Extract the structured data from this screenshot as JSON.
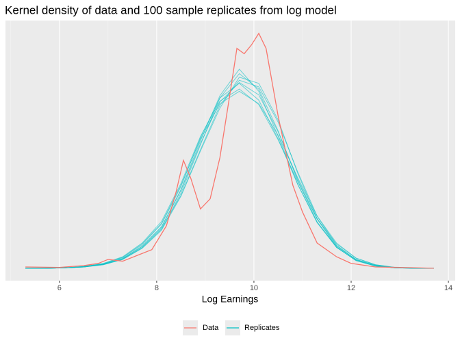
{
  "chart_data": {
    "type": "line",
    "title": "Kernel density of data and 100 sample replicates from log model",
    "x_label": "Log Earnings",
    "xlim": [
      4.89,
      14.14
    ],
    "ylim": [
      -0.028,
      0.56
    ],
    "xticks": [
      6,
      8,
      10,
      12,
      14
    ],
    "xminor_grid": [
      5,
      7,
      9,
      11,
      13
    ],
    "grid": true,
    "legend": "bottom",
    "series": [
      {
        "name": "Data",
        "color": "#F8766D",
        "x": [
          5.3,
          6.0,
          6.5,
          6.8,
          7.0,
          7.3,
          7.6,
          7.9,
          8.2,
          8.4,
          8.55,
          8.7,
          8.9,
          9.1,
          9.3,
          9.5,
          9.65,
          9.8,
          9.95,
          10.1,
          10.25,
          10.5,
          10.8,
          11.0,
          11.3,
          11.7,
          12.0,
          12.5,
          13.0,
          13.7
        ],
        "values": [
          0.003,
          0.002,
          0.006,
          0.011,
          0.02,
          0.016,
          0.029,
          0.042,
          0.096,
          0.173,
          0.244,
          0.204,
          0.134,
          0.157,
          0.25,
          0.389,
          0.497,
          0.485,
          0.505,
          0.531,
          0.497,
          0.343,
          0.188,
          0.127,
          0.057,
          0.026,
          0.011,
          0.003,
          0.002,
          0.0
        ]
      },
      {
        "name": "Replicates",
        "color": "#00BFC4",
        "x": [
          5.3,
          5.7,
          6.1,
          6.5,
          6.9,
          7.3,
          7.7,
          8.1,
          8.5,
          8.9,
          9.3,
          9.7,
          10.1,
          10.5,
          10.9,
          11.3,
          11.7,
          12.1,
          12.5,
          12.9,
          13.3,
          13.7
        ],
        "curves": [
          [
            0.0,
            0.0,
            0.001,
            0.003,
            0.009,
            0.022,
            0.05,
            0.093,
            0.176,
            0.282,
            0.376,
            0.42,
            0.392,
            0.308,
            0.202,
            0.111,
            0.051,
            0.02,
            0.006,
            0.001,
            0.0,
            0.0
          ],
          [
            0.0,
            0.0,
            0.001,
            0.003,
            0.008,
            0.02,
            0.046,
            0.088,
            0.17,
            0.279,
            0.385,
            0.44,
            0.405,
            0.31,
            0.198,
            0.105,
            0.047,
            0.018,
            0.005,
            0.001,
            0.0,
            0.0
          ],
          [
            0.0,
            0.0,
            0.001,
            0.004,
            0.01,
            0.025,
            0.055,
            0.102,
            0.188,
            0.292,
            0.372,
            0.4,
            0.372,
            0.3,
            0.205,
            0.118,
            0.057,
            0.023,
            0.008,
            0.002,
            0.0,
            0.0
          ],
          [
            0.0,
            0.0,
            0.001,
            0.003,
            0.009,
            0.021,
            0.047,
            0.09,
            0.165,
            0.268,
            0.368,
            0.425,
            0.41,
            0.33,
            0.218,
            0.118,
            0.052,
            0.019,
            0.006,
            0.001,
            0.0,
            0.0
          ],
          [
            0.0,
            0.0,
            0.001,
            0.004,
            0.01,
            0.024,
            0.053,
            0.1,
            0.185,
            0.295,
            0.385,
            0.418,
            0.38,
            0.292,
            0.19,
            0.104,
            0.049,
            0.02,
            0.007,
            0.002,
            0.0,
            0.0
          ],
          [
            0.0,
            0.0,
            0.001,
            0.003,
            0.008,
            0.02,
            0.045,
            0.086,
            0.163,
            0.265,
            0.362,
            0.432,
            0.418,
            0.335,
            0.215,
            0.112,
            0.048,
            0.017,
            0.005,
            0.001,
            0.0,
            0.0
          ],
          [
            0.0,
            0.0,
            0.001,
            0.004,
            0.011,
            0.026,
            0.057,
            0.106,
            0.192,
            0.298,
            0.378,
            0.405,
            0.37,
            0.29,
            0.196,
            0.112,
            0.055,
            0.023,
            0.008,
            0.002,
            0.0,
            0.0
          ],
          [
            0.0,
            0.0,
            0.001,
            0.003,
            0.009,
            0.022,
            0.049,
            0.094,
            0.178,
            0.288,
            0.39,
            0.45,
            0.4,
            0.298,
            0.19,
            0.103,
            0.047,
            0.018,
            0.005,
            0.001,
            0.0,
            0.0
          ]
        ]
      }
    ]
  }
}
